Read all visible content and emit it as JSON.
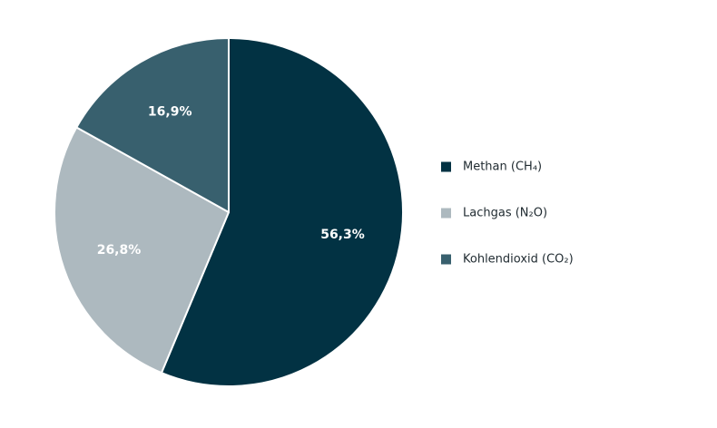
{
  "chart_data": {
    "type": "pie",
    "start_angle_deg": 0,
    "direction": "clockwise",
    "legend_position": "right",
    "slices": [
      {
        "label": "Methan (CH₄)",
        "value": 56.3,
        "value_label": "56,3%",
        "color": "#023243"
      },
      {
        "label": "Lachgas (N₂O)",
        "value": 26.8,
        "value_label": "26,8%",
        "color": "#adb9bf"
      },
      {
        "label": "Kohlendioxid (CO₂)",
        "value": 16.9,
        "value_label": "16,9%",
        "color": "#38606e"
      }
    ]
  }
}
